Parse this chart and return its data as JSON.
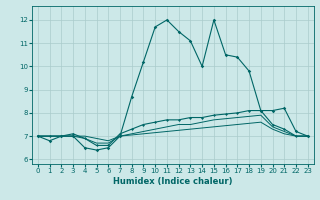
{
  "title": "",
  "xlabel": "Humidex (Indice chaleur)",
  "ylabel": "",
  "bg_color": "#cce8e8",
  "line_color": "#006666",
  "grid_color": "#aacccc",
  "xlim": [
    -0.5,
    23.5
  ],
  "ylim": [
    5.8,
    12.6
  ],
  "yticks": [
    6,
    7,
    8,
    9,
    10,
    11,
    12
  ],
  "xticks": [
    0,
    1,
    2,
    3,
    4,
    5,
    6,
    7,
    8,
    9,
    10,
    11,
    12,
    13,
    14,
    15,
    16,
    17,
    18,
    19,
    20,
    21,
    22,
    23
  ],
  "series1": [
    7.0,
    6.8,
    7.0,
    7.0,
    6.5,
    6.4,
    6.5,
    7.0,
    8.7,
    10.2,
    11.7,
    12.0,
    11.5,
    11.1,
    10.0,
    12.0,
    10.5,
    10.4,
    9.8,
    8.1,
    8.1,
    8.2,
    7.2,
    7.0
  ],
  "series2": [
    7.0,
    7.0,
    7.0,
    7.1,
    6.9,
    6.6,
    6.6,
    7.1,
    7.3,
    7.5,
    7.6,
    7.7,
    7.7,
    7.8,
    7.8,
    7.9,
    7.95,
    8.0,
    8.1,
    8.1,
    7.5,
    7.3,
    7.0,
    7.0
  ],
  "series3": [
    7.0,
    7.0,
    7.0,
    7.0,
    6.9,
    6.7,
    6.7,
    7.0,
    7.1,
    7.2,
    7.3,
    7.4,
    7.5,
    7.5,
    7.6,
    7.7,
    7.75,
    7.8,
    7.85,
    7.9,
    7.4,
    7.2,
    7.0,
    7.0
  ],
  "series4": [
    7.0,
    7.0,
    7.0,
    7.0,
    7.0,
    6.9,
    6.8,
    7.0,
    7.05,
    7.1,
    7.15,
    7.2,
    7.25,
    7.3,
    7.35,
    7.4,
    7.45,
    7.5,
    7.55,
    7.6,
    7.3,
    7.1,
    7.0,
    7.0
  ]
}
